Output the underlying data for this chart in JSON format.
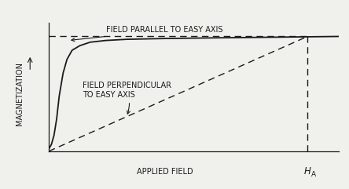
{
  "background_color": "#f0f0ec",
  "plot_bg": "#f0f0ec",
  "xlim": [
    0,
    1.12
  ],
  "ylim": [
    0,
    1.12
  ],
  "Ms": 1.0,
  "HA": 1.0,
  "ylabel": "MAGNETIZATION",
  "xlabel": "APPLIED FIELD",
  "HA_label": "H",
  "HA_subscript": "A",
  "label_parallel": "FIELD PARALLEL TO EASY AXIS",
  "label_perp_line1": "FIELD PERPENDICULAR",
  "label_perp_line2": "TO EASY AXIS",
  "line_color": "#1a1a1a",
  "dashed_color": "#1a1a1a",
  "font_size": 7.0,
  "axis_label_fontsize": 7.0,
  "easy_x": [
    0.0,
    0.01,
    0.02,
    0.03,
    0.04,
    0.055,
    0.07,
    0.09,
    0.12,
    0.16,
    0.22,
    0.3,
    0.45,
    0.65,
    0.85,
    1.0,
    1.12
  ],
  "easy_y": [
    0.02,
    0.06,
    0.14,
    0.28,
    0.48,
    0.68,
    0.8,
    0.88,
    0.92,
    0.95,
    0.965,
    0.975,
    0.982,
    0.988,
    0.993,
    0.997,
    1.0
  ]
}
